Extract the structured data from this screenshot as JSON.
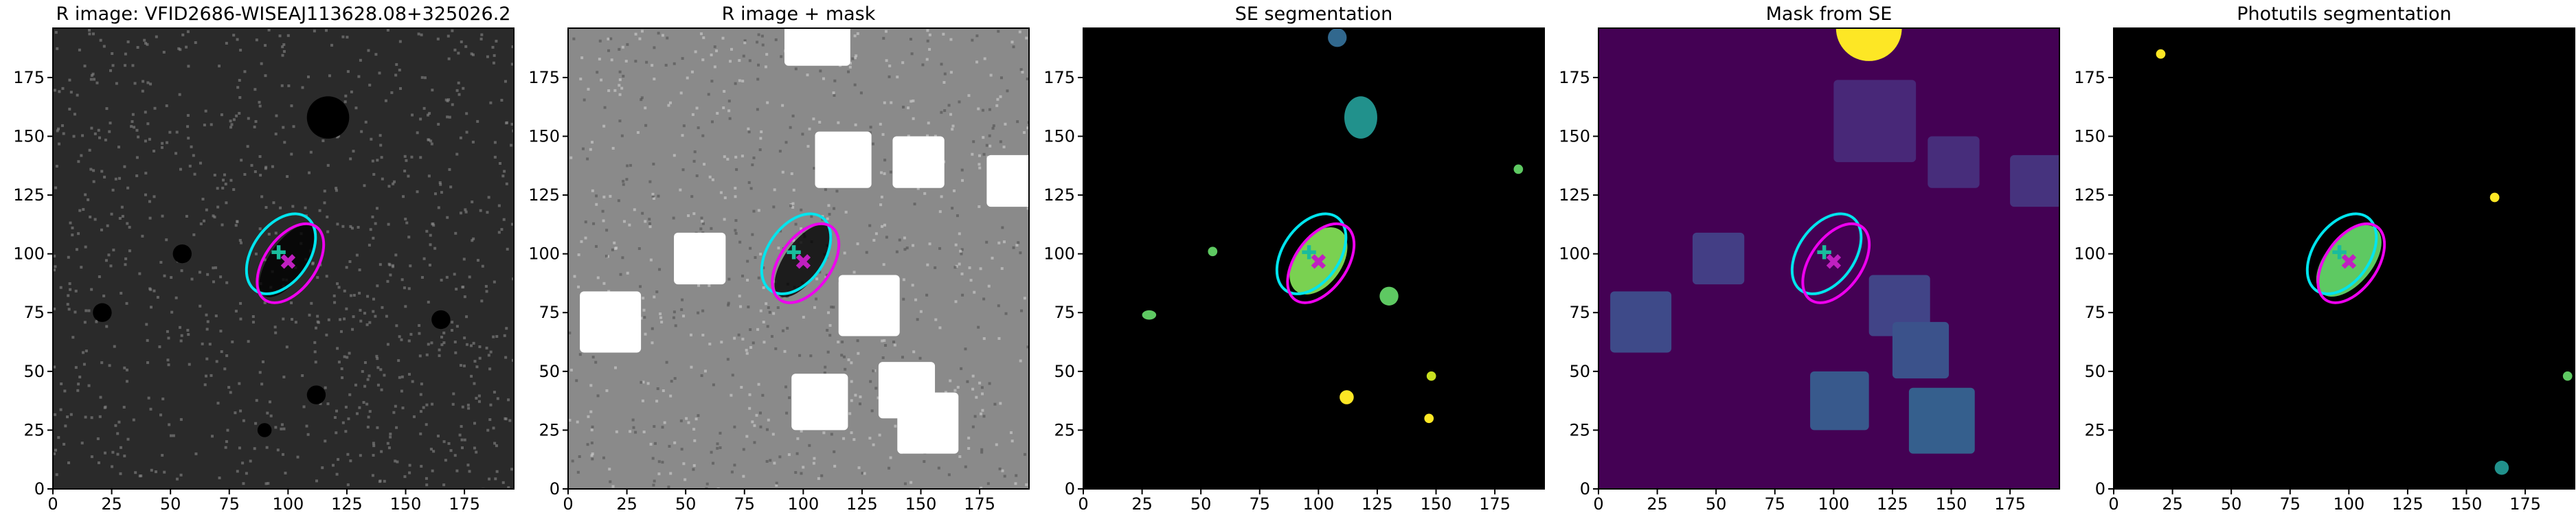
{
  "panels": [
    {
      "title": "R image: VFID2686-WISEAJ113628.08+325026.2",
      "xlim": [
        0,
        196
      ],
      "ylim": [
        0,
        196
      ],
      "xticks": [
        0,
        25,
        50,
        75,
        100,
        125,
        150,
        175
      ],
      "yticks": [
        0,
        25,
        50,
        75,
        100,
        125,
        150,
        175
      ]
    },
    {
      "title": "R image + mask",
      "xlim": [
        0,
        196
      ],
      "ylim": [
        0,
        196
      ],
      "xticks": [
        0,
        25,
        50,
        75,
        100,
        125,
        150,
        175
      ],
      "yticks": [
        0,
        25,
        50,
        75,
        100,
        125,
        150,
        175
      ]
    },
    {
      "title": "SE segmentation",
      "xlim": [
        0,
        196
      ],
      "ylim": [
        0,
        196
      ],
      "xticks": [
        0,
        25,
        50,
        75,
        100,
        125,
        150,
        175
      ],
      "yticks": [
        0,
        25,
        50,
        75,
        100,
        125,
        150,
        175
      ]
    },
    {
      "title": "Mask from SE",
      "xlim": [
        0,
        196
      ],
      "ylim": [
        0,
        196
      ],
      "xticks": [
        0,
        25,
        50,
        75,
        100,
        125,
        150,
        175
      ],
      "yticks": [
        0,
        25,
        50,
        75,
        100,
        125,
        150,
        175
      ]
    },
    {
      "title": "Photutils segmentation",
      "xlim": [
        0,
        196
      ],
      "ylim": [
        0,
        196
      ],
      "xticks": [
        0,
        25,
        50,
        75,
        100,
        125,
        150,
        175
      ],
      "yticks": [
        0,
        25,
        50,
        75,
        100,
        125,
        150,
        175
      ]
    }
  ]
}
